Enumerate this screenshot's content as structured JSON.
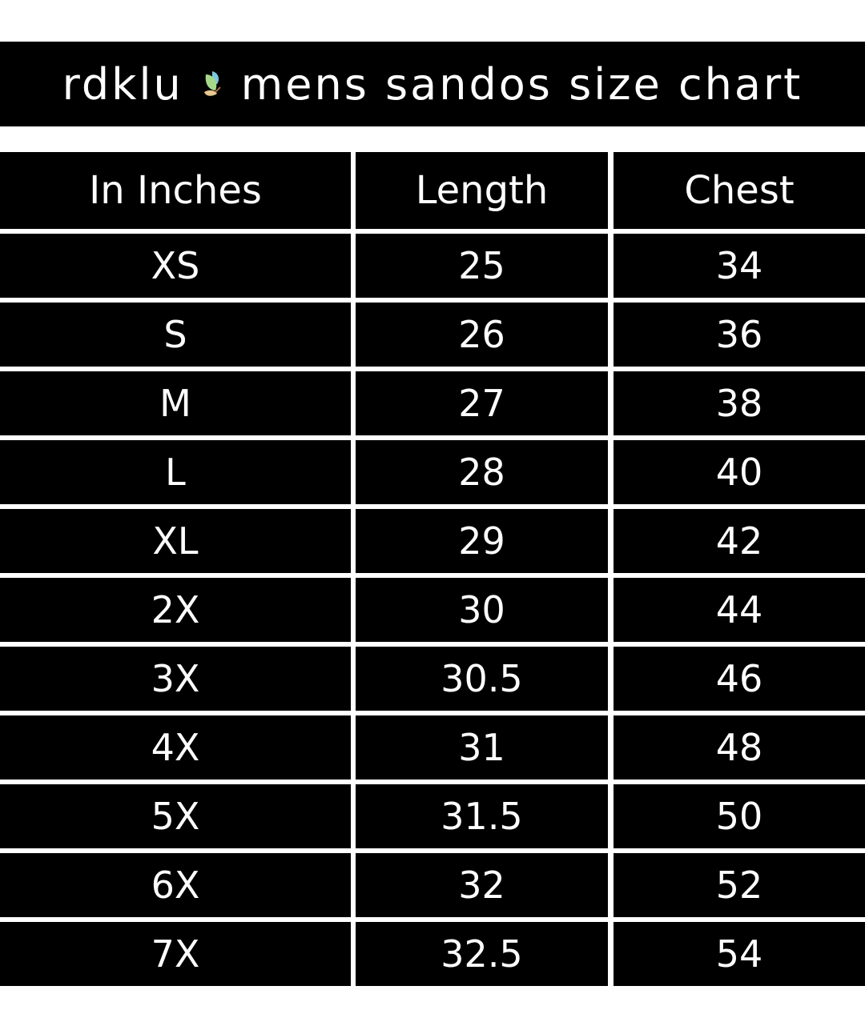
{
  "title": {
    "brand": "rdklu",
    "logo": "butterfly-logo",
    "text": "mens sandos size chart"
  },
  "table": {
    "headers": [
      "In Inches",
      "Length",
      "Chest"
    ],
    "rows": [
      [
        "XS",
        "25",
        "34"
      ],
      [
        "S",
        "26",
        "36"
      ],
      [
        "M",
        "27",
        "38"
      ],
      [
        "L",
        "28",
        "40"
      ],
      [
        "XL",
        "29",
        "42"
      ],
      [
        "2X",
        "30",
        "44"
      ],
      [
        "3X",
        "30.5",
        "46"
      ],
      [
        "4X",
        "31",
        "48"
      ],
      [
        "5X",
        "31.5",
        "50"
      ],
      [
        "6X",
        "32",
        "52"
      ],
      [
        "7X",
        "32.5",
        "54"
      ]
    ]
  },
  "colors": {
    "background": "#000000",
    "text": "#ffffff",
    "page": "#ffffff"
  }
}
